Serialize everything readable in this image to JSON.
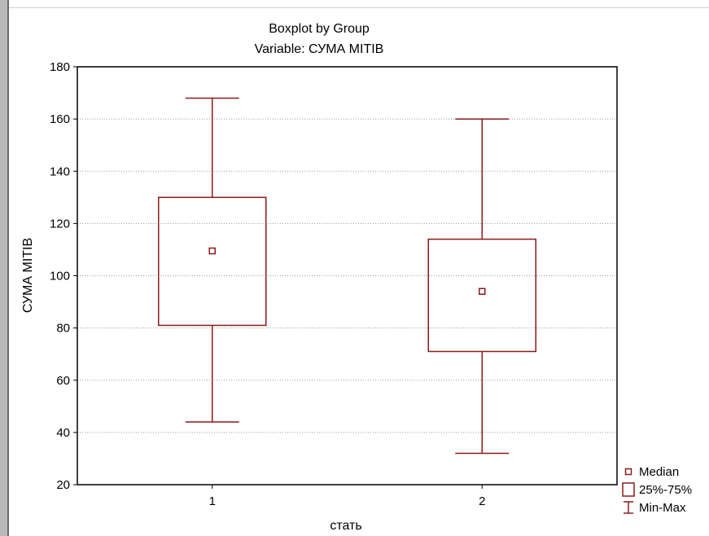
{
  "chart_data": {
    "type": "boxplot",
    "title": "Boxplot by Group",
    "subtitle": "Variable: СУМА МІТІВ",
    "xlabel": "стать",
    "ylabel": "СУМА МІТІВ",
    "ylim": [
      20,
      180
    ],
    "yticks": [
      "20",
      "40",
      "60",
      "80",
      "100",
      "120",
      "140",
      "160",
      "180"
    ],
    "categories": [
      "1",
      "2"
    ],
    "grid": true,
    "legend_position": "bottom-right",
    "groups": [
      {
        "category": "1",
        "min": 44,
        "q1": 81,
        "median": 109.5,
        "q3": 130,
        "max": 168
      },
      {
        "category": "2",
        "min": 32,
        "q1": 71,
        "median": 94,
        "q3": 114,
        "max": 160
      }
    ],
    "legend": [
      {
        "label": "Median",
        "symbol": "median-square"
      },
      {
        "label": "25%-75%",
        "symbol": "box"
      },
      {
        "label": "Min-Max",
        "symbol": "whisker"
      }
    ],
    "colors": {
      "series": "#8b1a1a",
      "grid": "#9a9a9a",
      "axis": "#000000"
    }
  }
}
